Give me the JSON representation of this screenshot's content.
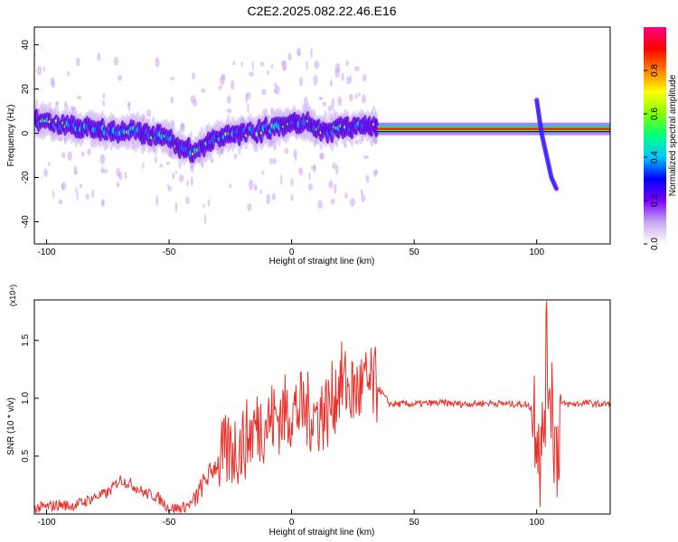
{
  "figure": {
    "title": "C2E2.2025.082.22.46.E16"
  },
  "chart_data": [
    {
      "type": "heatmap",
      "title": "C2E2.2025.082.22.46.E16",
      "xlabel": "Height of straight line (km)",
      "ylabel": "Frequency (Hz)",
      "xlim": [
        -105,
        130
      ],
      "ylim": [
        -50,
        48
      ],
      "xticks": [
        -100,
        -50,
        0,
        50,
        100
      ],
      "yticks": [
        -40,
        -20,
        0,
        20,
        40
      ],
      "colorbar": {
        "label": "Normalized spectral amplitude",
        "range": [
          0.0,
          1.0
        ],
        "ticks": [
          "0.0",
          "0.2",
          "0.4",
          "0.6",
          "0.8"
        ],
        "colors": [
          "#ffffff",
          "#c8a8f0",
          "#7a00ff",
          "#0000ff",
          "#00c8ff",
          "#00ff80",
          "#80ff00",
          "#ffff00",
          "#ff8000",
          "#ff0000",
          "#ff0080"
        ]
      },
      "ridge": {
        "x": [
          -105,
          -100,
          -95,
          -90,
          -85,
          -80,
          -75,
          -70,
          -65,
          -60,
          -55,
          -50,
          -45,
          -40,
          -35,
          -30,
          -25,
          -20,
          -15,
          -10,
          -5,
          0,
          5,
          10,
          15,
          20,
          25,
          30,
          35,
          40,
          50,
          60,
          70,
          80,
          90,
          100,
          110,
          120,
          130
        ],
        "y": [
          6,
          5,
          4,
          3,
          3,
          2,
          1,
          0,
          1,
          0,
          -1,
          -3,
          -6,
          -8,
          -6,
          -2,
          0,
          0,
          1,
          2,
          3,
          4,
          5,
          2,
          0,
          3,
          3,
          4,
          2,
          2,
          2,
          2,
          2,
          2,
          2,
          3,
          3,
          3,
          3
        ]
      },
      "spike": {
        "x": [
          100,
          102,
          104,
          106,
          108
        ],
        "y": [
          15,
          0,
          -10,
          -20,
          -25
        ]
      }
    },
    {
      "type": "line",
      "xlabel": "Height of straight line (km)",
      "ylabel": "SNR (10 * v/v)",
      "y_multiplier": "(x10⁴)",
      "xlim": [
        -105,
        130
      ],
      "ylim": [
        0,
        1.85
      ],
      "xticks": [
        -100,
        -50,
        0,
        50,
        100
      ],
      "yticks": [
        0.5,
        1.0,
        1.5
      ],
      "series": [
        {
          "color": "#e8302a",
          "x": [
            -105,
            -100,
            -95,
            -90,
            -85,
            -80,
            -75,
            -70,
            -65,
            -60,
            -55,
            -50,
            -45,
            -40,
            -35,
            -30,
            -25,
            -20,
            -15,
            -10,
            -5,
            0,
            5,
            10,
            15,
            20,
            25,
            30,
            35,
            40,
            50,
            60,
            70,
            80,
            90,
            95,
            100,
            102,
            104,
            106,
            108,
            110,
            115,
            120,
            125,
            130
          ],
          "y": [
            0.05,
            0.06,
            0.08,
            0.07,
            0.1,
            0.15,
            0.18,
            0.3,
            0.25,
            0.18,
            0.15,
            0.05,
            0.05,
            0.1,
            0.3,
            0.45,
            0.55,
            0.6,
            0.75,
            0.8,
            0.85,
            0.9,
            0.9,
            0.85,
            0.9,
            1.15,
            1.05,
            1.1,
            1.1,
            0.95,
            0.95,
            0.96,
            0.95,
            0.96,
            0.95,
            0.95,
            0.9,
            0.4,
            1.35,
            1.1,
            0.5,
            0.95,
            0.95,
            0.96,
            0.95,
            0.95
          ]
        }
      ]
    }
  ]
}
